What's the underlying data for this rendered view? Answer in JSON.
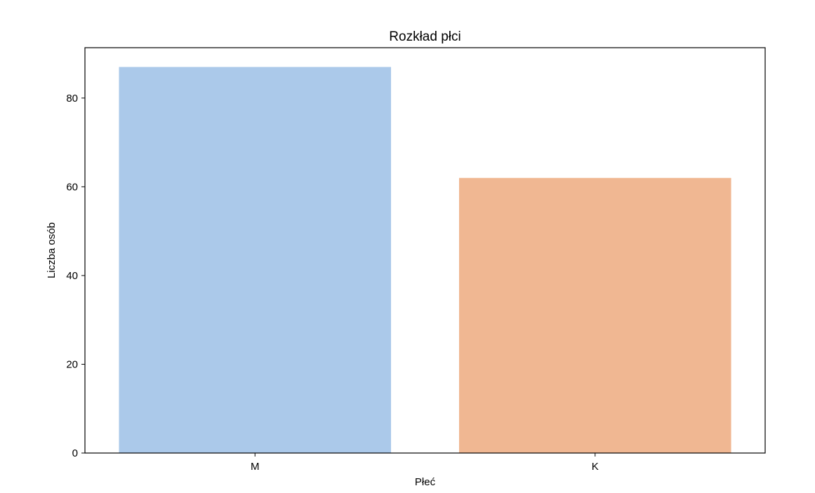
{
  "chart_data": {
    "type": "bar",
    "title": "Rozkład płci",
    "xlabel": "Płeć",
    "ylabel": "Liczba osób",
    "categories": [
      "M",
      "K"
    ],
    "values": [
      87,
      62
    ],
    "ylim": [
      0,
      91.35
    ],
    "yticks": [
      0,
      20,
      40,
      60,
      80
    ],
    "ytick_labels": [
      "0",
      "20",
      "40",
      "60",
      "80"
    ],
    "colors": [
      "#abc9ea",
      "#f0b792"
    ],
    "grid": false,
    "legend": "none"
  }
}
